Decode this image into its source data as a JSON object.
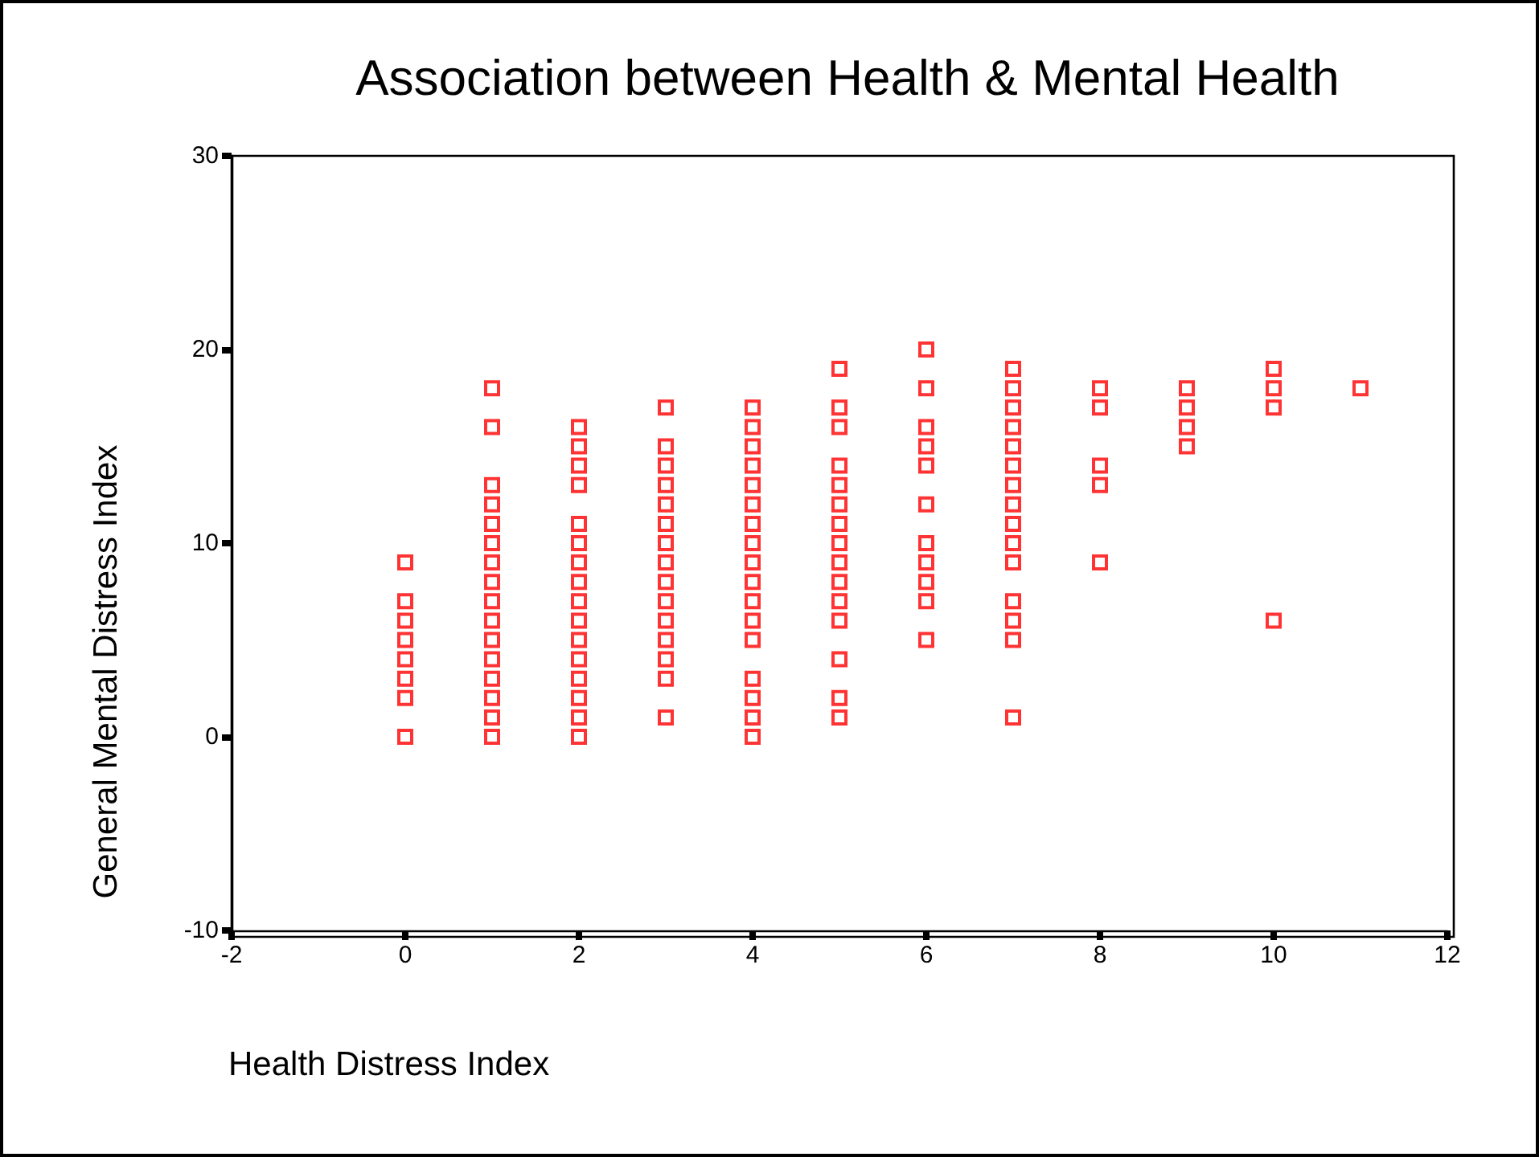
{
  "chart_data": {
    "type": "scatter",
    "title": "Association between Health & Mental Health",
    "xlabel": "Health Distress Index",
    "ylabel": "General Mental Distress Index",
    "xlim": [
      -2,
      12
    ],
    "xticks": [
      -2,
      0,
      2,
      4,
      6,
      8,
      10,
      12
    ],
    "ylim": [
      -10,
      30
    ],
    "yticks": [
      -10,
      0,
      10,
      20,
      30
    ],
    "marker": "square",
    "series": [
      {
        "color": "#ff0000",
        "x": [
          0,
          0,
          0,
          0,
          0,
          0,
          0,
          0,
          1,
          1,
          1,
          1,
          1,
          1,
          1,
          1,
          1,
          1,
          1,
          1,
          1,
          1,
          1,
          1,
          2,
          2,
          2,
          2,
          2,
          2,
          2,
          2,
          2,
          2,
          2,
          2,
          2,
          2,
          2,
          2,
          3,
          3,
          3,
          3,
          3,
          3,
          3,
          3,
          3,
          3,
          3,
          3,
          3,
          3,
          3,
          4,
          4,
          4,
          4,
          4,
          4,
          4,
          4,
          4,
          4,
          4,
          4,
          4,
          4,
          4,
          4,
          4,
          5,
          5,
          5,
          5,
          5,
          5,
          5,
          5,
          5,
          5,
          5,
          5,
          5,
          5,
          5,
          6,
          6,
          6,
          6,
          6,
          6,
          6,
          6,
          6,
          6,
          6,
          7,
          7,
          7,
          7,
          7,
          7,
          7,
          7,
          7,
          7,
          7,
          7,
          7,
          7,
          7,
          8,
          8,
          8,
          8,
          8,
          9,
          9,
          9,
          9,
          10,
          10,
          10,
          10,
          11
        ],
        "values": [
          9,
          7,
          6,
          5,
          4,
          3,
          2,
          0,
          18,
          16,
          13,
          12,
          11,
          10,
          9,
          8,
          7,
          6,
          5,
          4,
          3,
          2,
          1,
          0,
          16,
          15,
          14,
          13,
          11,
          10,
          9,
          8,
          7,
          6,
          5,
          4,
          3,
          2,
          1,
          0,
          17,
          15,
          14,
          13,
          12,
          11,
          10,
          9,
          8,
          7,
          6,
          5,
          4,
          3,
          1,
          17,
          16,
          15,
          14,
          13,
          12,
          11,
          10,
          9,
          8,
          7,
          6,
          5,
          3,
          2,
          1,
          0,
          19,
          17,
          16,
          14,
          13,
          12,
          11,
          10,
          9,
          8,
          7,
          6,
          4,
          2,
          1,
          20,
          18,
          16,
          15,
          14,
          12,
          10,
          9,
          8,
          7,
          5,
          19,
          18,
          17,
          16,
          15,
          14,
          13,
          12,
          11,
          10,
          9,
          7,
          6,
          5,
          1,
          18,
          17,
          14,
          13,
          9,
          18,
          17,
          16,
          15,
          19,
          18,
          17,
          6,
          18
        ]
      }
    ]
  }
}
